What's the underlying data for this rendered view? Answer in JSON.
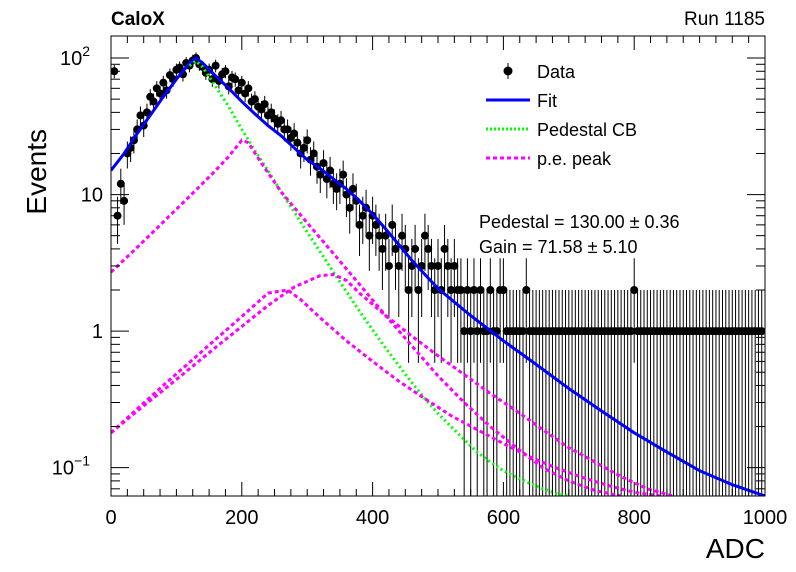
{
  "header": {
    "experiment": "CaloX",
    "run": "Run 1185"
  },
  "stats": {
    "pedestal": "Pedestal = 130.00 ± 0.36",
    "gain": "Gain = 71.58 ± 5.10"
  },
  "legend": [
    {
      "label": "Data",
      "style": "marker",
      "color": "#000000"
    },
    {
      "label": "Fit",
      "style": "solid",
      "color": "#0000ff"
    },
    {
      "label": "Pedestal CB",
      "style": "dotted",
      "color": "#00ff00"
    },
    {
      "label": "p.e. peak",
      "style": "dashed",
      "color": "#ff00ff"
    }
  ],
  "chart_data": {
    "type": "scatter",
    "title": "",
    "xlabel": "ADC",
    "ylabel": "Events",
    "xlim": [
      0,
      1000
    ],
    "ylim": [
      0.062,
      145
    ],
    "yscale": "log",
    "grid": false,
    "legend_position": "top-right",
    "x_ticks": [
      0,
      200,
      400,
      600,
      800,
      1000
    ],
    "y_ticks": [
      {
        "value": 0.1,
        "base": "10",
        "exp": "−1"
      },
      {
        "value": 1,
        "label": "1"
      },
      {
        "value": 10,
        "label": "10"
      },
      {
        "value": 100,
        "base": "10",
        "exp": "2"
      }
    ],
    "series": [
      {
        "name": "Data",
        "style": "points",
        "color": "#000000",
        "x": [
          5,
          10,
          15,
          20,
          25,
          30,
          35,
          40,
          45,
          50,
          55,
          60,
          65,
          70,
          75,
          80,
          85,
          90,
          95,
          100,
          105,
          110,
          115,
          120,
          125,
          130,
          135,
          140,
          145,
          150,
          155,
          160,
          165,
          170,
          175,
          180,
          185,
          190,
          195,
          200,
          205,
          210,
          215,
          220,
          225,
          230,
          235,
          240,
          245,
          250,
          255,
          260,
          265,
          270,
          275,
          280,
          285,
          290,
          295,
          300,
          305,
          310,
          315,
          320,
          325,
          330,
          335,
          340,
          345,
          350,
          355,
          360,
          365,
          370,
          375,
          380,
          385,
          390,
          395,
          400,
          405,
          410,
          415,
          420,
          425,
          430,
          435,
          440,
          445,
          450,
          455,
          460,
          465,
          470,
          475,
          480,
          485,
          490,
          495,
          500,
          505,
          510,
          515,
          520,
          525,
          530,
          535,
          540,
          545,
          550,
          555,
          560,
          565,
          570,
          575,
          580,
          585,
          590,
          595,
          600,
          605,
          610,
          615,
          620,
          625,
          630,
          635,
          640,
          645,
          650,
          655,
          660,
          665,
          670,
          675,
          680,
          685,
          690,
          695,
          700,
          705,
          710,
          715,
          720,
          725,
          730,
          735,
          740,
          745,
          750,
          755,
          760,
          765,
          770,
          775,
          780,
          785,
          790,
          795,
          800,
          805,
          810,
          815,
          820,
          825,
          830,
          835,
          840,
          845,
          850,
          855,
          860,
          865,
          870,
          875,
          880,
          885,
          890,
          895,
          900,
          905,
          910,
          915,
          920,
          925,
          930,
          935,
          940,
          945,
          950,
          955,
          960,
          965,
          970,
          975,
          980,
          985,
          990,
          995
        ],
        "y": [
          80,
          7,
          12,
          9,
          20,
          22,
          25,
          30,
          38,
          32,
          40,
          52,
          48,
          60,
          55,
          66,
          58,
          75,
          70,
          82,
          85,
          76,
          92,
          88,
          96,
          100,
          90,
          86,
          78,
          82,
          70,
          88,
          68,
          76,
          80,
          62,
          72,
          70,
          58,
          66,
          55,
          60,
          48,
          50,
          44,
          42,
          46,
          38,
          40,
          36,
          33,
          35,
          30,
          30,
          26,
          28,
          24,
          20,
          22,
          25,
          18,
          20,
          16,
          14,
          17,
          13,
          15,
          12,
          11,
          12,
          14,
          10,
          8,
          11,
          9,
          6,
          7,
          8,
          5,
          7,
          6,
          5,
          4,
          5,
          3,
          6,
          4,
          3,
          5,
          4,
          2,
          3,
          4,
          2,
          3,
          5,
          4,
          3,
          2,
          3,
          2,
          4,
          3,
          2,
          3,
          2,
          2,
          1,
          2,
          1,
          2,
          1,
          2,
          1,
          1,
          2,
          1,
          1,
          2,
          2,
          1,
          1,
          1,
          1,
          1,
          1,
          2,
          1,
          1,
          1,
          1,
          1,
          1,
          1,
          1,
          1,
          1,
          1,
          1,
          1,
          1,
          1,
          1,
          1,
          1,
          1,
          1,
          1,
          1,
          1,
          1,
          1,
          1,
          1,
          1,
          1,
          1,
          1,
          1,
          2,
          1,
          1,
          1,
          1,
          1,
          1,
          1,
          1,
          1,
          1,
          1,
          1,
          1,
          1,
          1,
          1,
          1,
          1,
          1,
          1,
          1,
          1,
          1,
          1,
          1,
          1,
          1,
          1,
          1,
          1,
          1,
          1,
          1,
          1,
          1,
          1,
          1,
          1,
          1
        ]
      },
      {
        "name": "Fit",
        "style": "solid",
        "color": "#0000ff",
        "x": [
          0,
          20,
          40,
          60,
          80,
          100,
          120,
          130,
          140,
          160,
          180,
          200,
          220,
          240,
          260,
          280,
          300,
          320,
          340,
          360,
          380,
          400,
          420,
          440,
          460,
          480,
          500,
          550,
          600,
          650,
          700,
          750,
          800,
          850,
          900,
          950,
          1000
        ],
        "y": [
          15,
          20,
          28,
          38,
          52,
          70,
          92,
          100,
          92,
          74,
          60,
          48,
          39,
          32,
          27,
          22,
          18,
          15.5,
          13,
          11,
          9,
          7.2,
          5.6,
          4.3,
          3.3,
          2.6,
          2.05,
          1.3,
          0.85,
          0.57,
          0.38,
          0.26,
          0.18,
          0.13,
          0.095,
          0.075,
          0.062
        ]
      },
      {
        "name": "Pedestal CB",
        "style": "dotted",
        "color": "#00ff00",
        "x": [
          120,
          130,
          140,
          160,
          180,
          200,
          220,
          240,
          260,
          280,
          300,
          320,
          340,
          360,
          380,
          400,
          420,
          440,
          460,
          480,
          500,
          520,
          540,
          560,
          580,
          600,
          620,
          640,
          660,
          680,
          700
        ],
        "y": [
          88,
          95,
          86,
          62,
          44,
          30,
          21,
          15,
          10.5,
          7.5,
          5.3,
          3.8,
          2.7,
          1.95,
          1.4,
          1.02,
          0.75,
          0.56,
          0.42,
          0.32,
          0.25,
          0.2,
          0.16,
          0.13,
          0.11,
          0.095,
          0.085,
          0.077,
          0.07,
          0.065,
          0.062
        ]
      },
      {
        "name": "p.e. peak",
        "style": "dashed",
        "color": "#ff00ff",
        "x": [
          0,
          40,
          80,
          120,
          160,
          180,
          200,
          210,
          230,
          260,
          300,
          340,
          380,
          420,
          460,
          500,
          540,
          580,
          620,
          660,
          700,
          740,
          780
        ],
        "y": [
          2.7,
          4.1,
          6.3,
          9.7,
          15,
          19,
          25,
          24,
          17,
          10.5,
          6.2,
          3.7,
          2.2,
          1.3,
          0.78,
          0.47,
          0.3,
          0.2,
          0.14,
          0.1,
          0.08,
          0.068,
          0.062
        ]
      },
      {
        "name": "p.e. peak 2",
        "style": "dashed",
        "color": "#ff00ff",
        "x": [
          0,
          40,
          80,
          120,
          160,
          200,
          240,
          270,
          290,
          320,
          360,
          400,
          440,
          480,
          520,
          560,
          600,
          640,
          680,
          720,
          760,
          800,
          840
        ],
        "y": [
          0.18,
          0.27,
          0.4,
          0.59,
          0.87,
          1.28,
          1.9,
          2,
          1.7,
          1.25,
          0.85,
          0.6,
          0.43,
          0.32,
          0.24,
          0.19,
          0.15,
          0.12,
          0.1,
          0.085,
          0.074,
          0.066,
          0.062
        ]
      },
      {
        "name": "p.e. peak 3",
        "style": "dashed",
        "color": "#ff00ff",
        "x": [
          0,
          40,
          80,
          120,
          160,
          200,
          240,
          280,
          320,
          340,
          360,
          380,
          420,
          460,
          500,
          540,
          580,
          620,
          660,
          700,
          740,
          780,
          820,
          860
        ],
        "y": [
          0.18,
          0.26,
          0.37,
          0.53,
          0.76,
          1.08,
          1.54,
          2.1,
          2.55,
          2.6,
          2.35,
          1.9,
          1.3,
          0.92,
          0.66,
          0.48,
          0.35,
          0.26,
          0.19,
          0.14,
          0.11,
          0.086,
          0.07,
          0.062
        ]
      }
    ]
  }
}
